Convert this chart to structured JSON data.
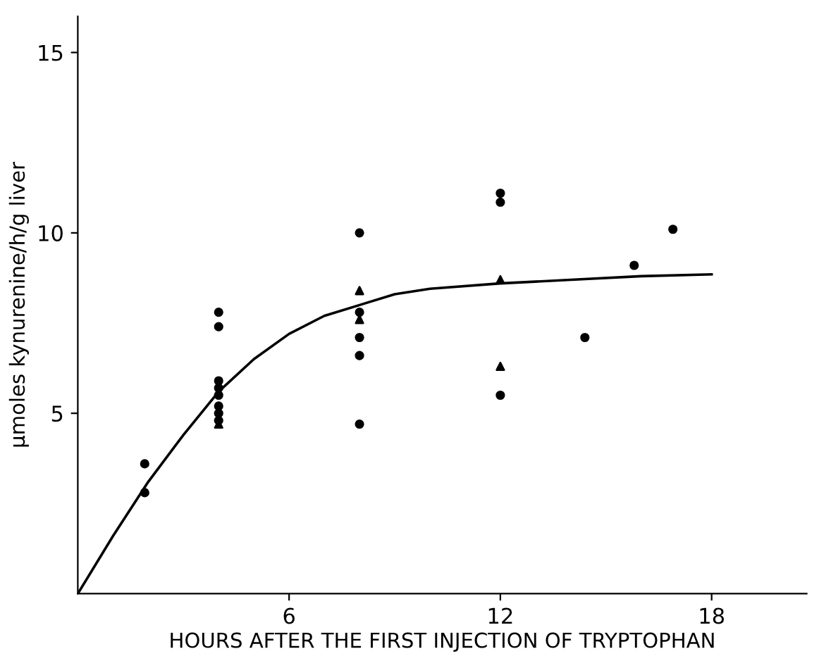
{
  "chart_data": {
    "type": "scatter",
    "xlabel": "HOURS AFTER THE FIRST INJECTION OF TRYPTOPHAN",
    "ylabel": "μmoles kynurenine/h/g liver",
    "xlim": [
      0,
      20.7
    ],
    "xticks": [
      6,
      12,
      18
    ],
    "ylim": [
      0,
      16
    ],
    "yticks": [
      5,
      10,
      15
    ],
    "grid": false,
    "legend": false,
    "series": [
      {
        "marker": "circle",
        "color": "#000000",
        "x": [
          1.9,
          1.9,
          4,
          4,
          4,
          4,
          4,
          4,
          4,
          4,
          8,
          8,
          8,
          8,
          8,
          12,
          12,
          12,
          14.4,
          15.8,
          16.9
        ],
        "values": [
          3.6,
          2.8,
          7.8,
          7.4,
          5.9,
          5.7,
          5.5,
          5.2,
          5.0,
          4.8,
          10.0,
          7.8,
          7.1,
          6.6,
          4.7,
          11.1,
          10.85,
          5.5,
          7.1,
          9.1,
          10.1
        ]
      },
      {
        "marker": "triangle",
        "color": "#000000",
        "x": [
          4,
          8,
          8,
          12,
          12
        ],
        "values": [
          4.7,
          8.4,
          7.6,
          8.7,
          6.3
        ]
      },
      {
        "type": "line",
        "marker": "none",
        "line_style": "solid",
        "color": "#000000",
        "x": [
          0,
          1,
          2,
          3,
          4,
          5,
          6,
          7,
          8,
          9,
          10,
          12,
          14,
          16,
          18
        ],
        "values": [
          0,
          1.6,
          3.1,
          4.4,
          5.6,
          6.5,
          7.2,
          7.7,
          8.0,
          8.3,
          8.45,
          8.6,
          8.7,
          8.8,
          8.85
        ]
      }
    ]
  }
}
